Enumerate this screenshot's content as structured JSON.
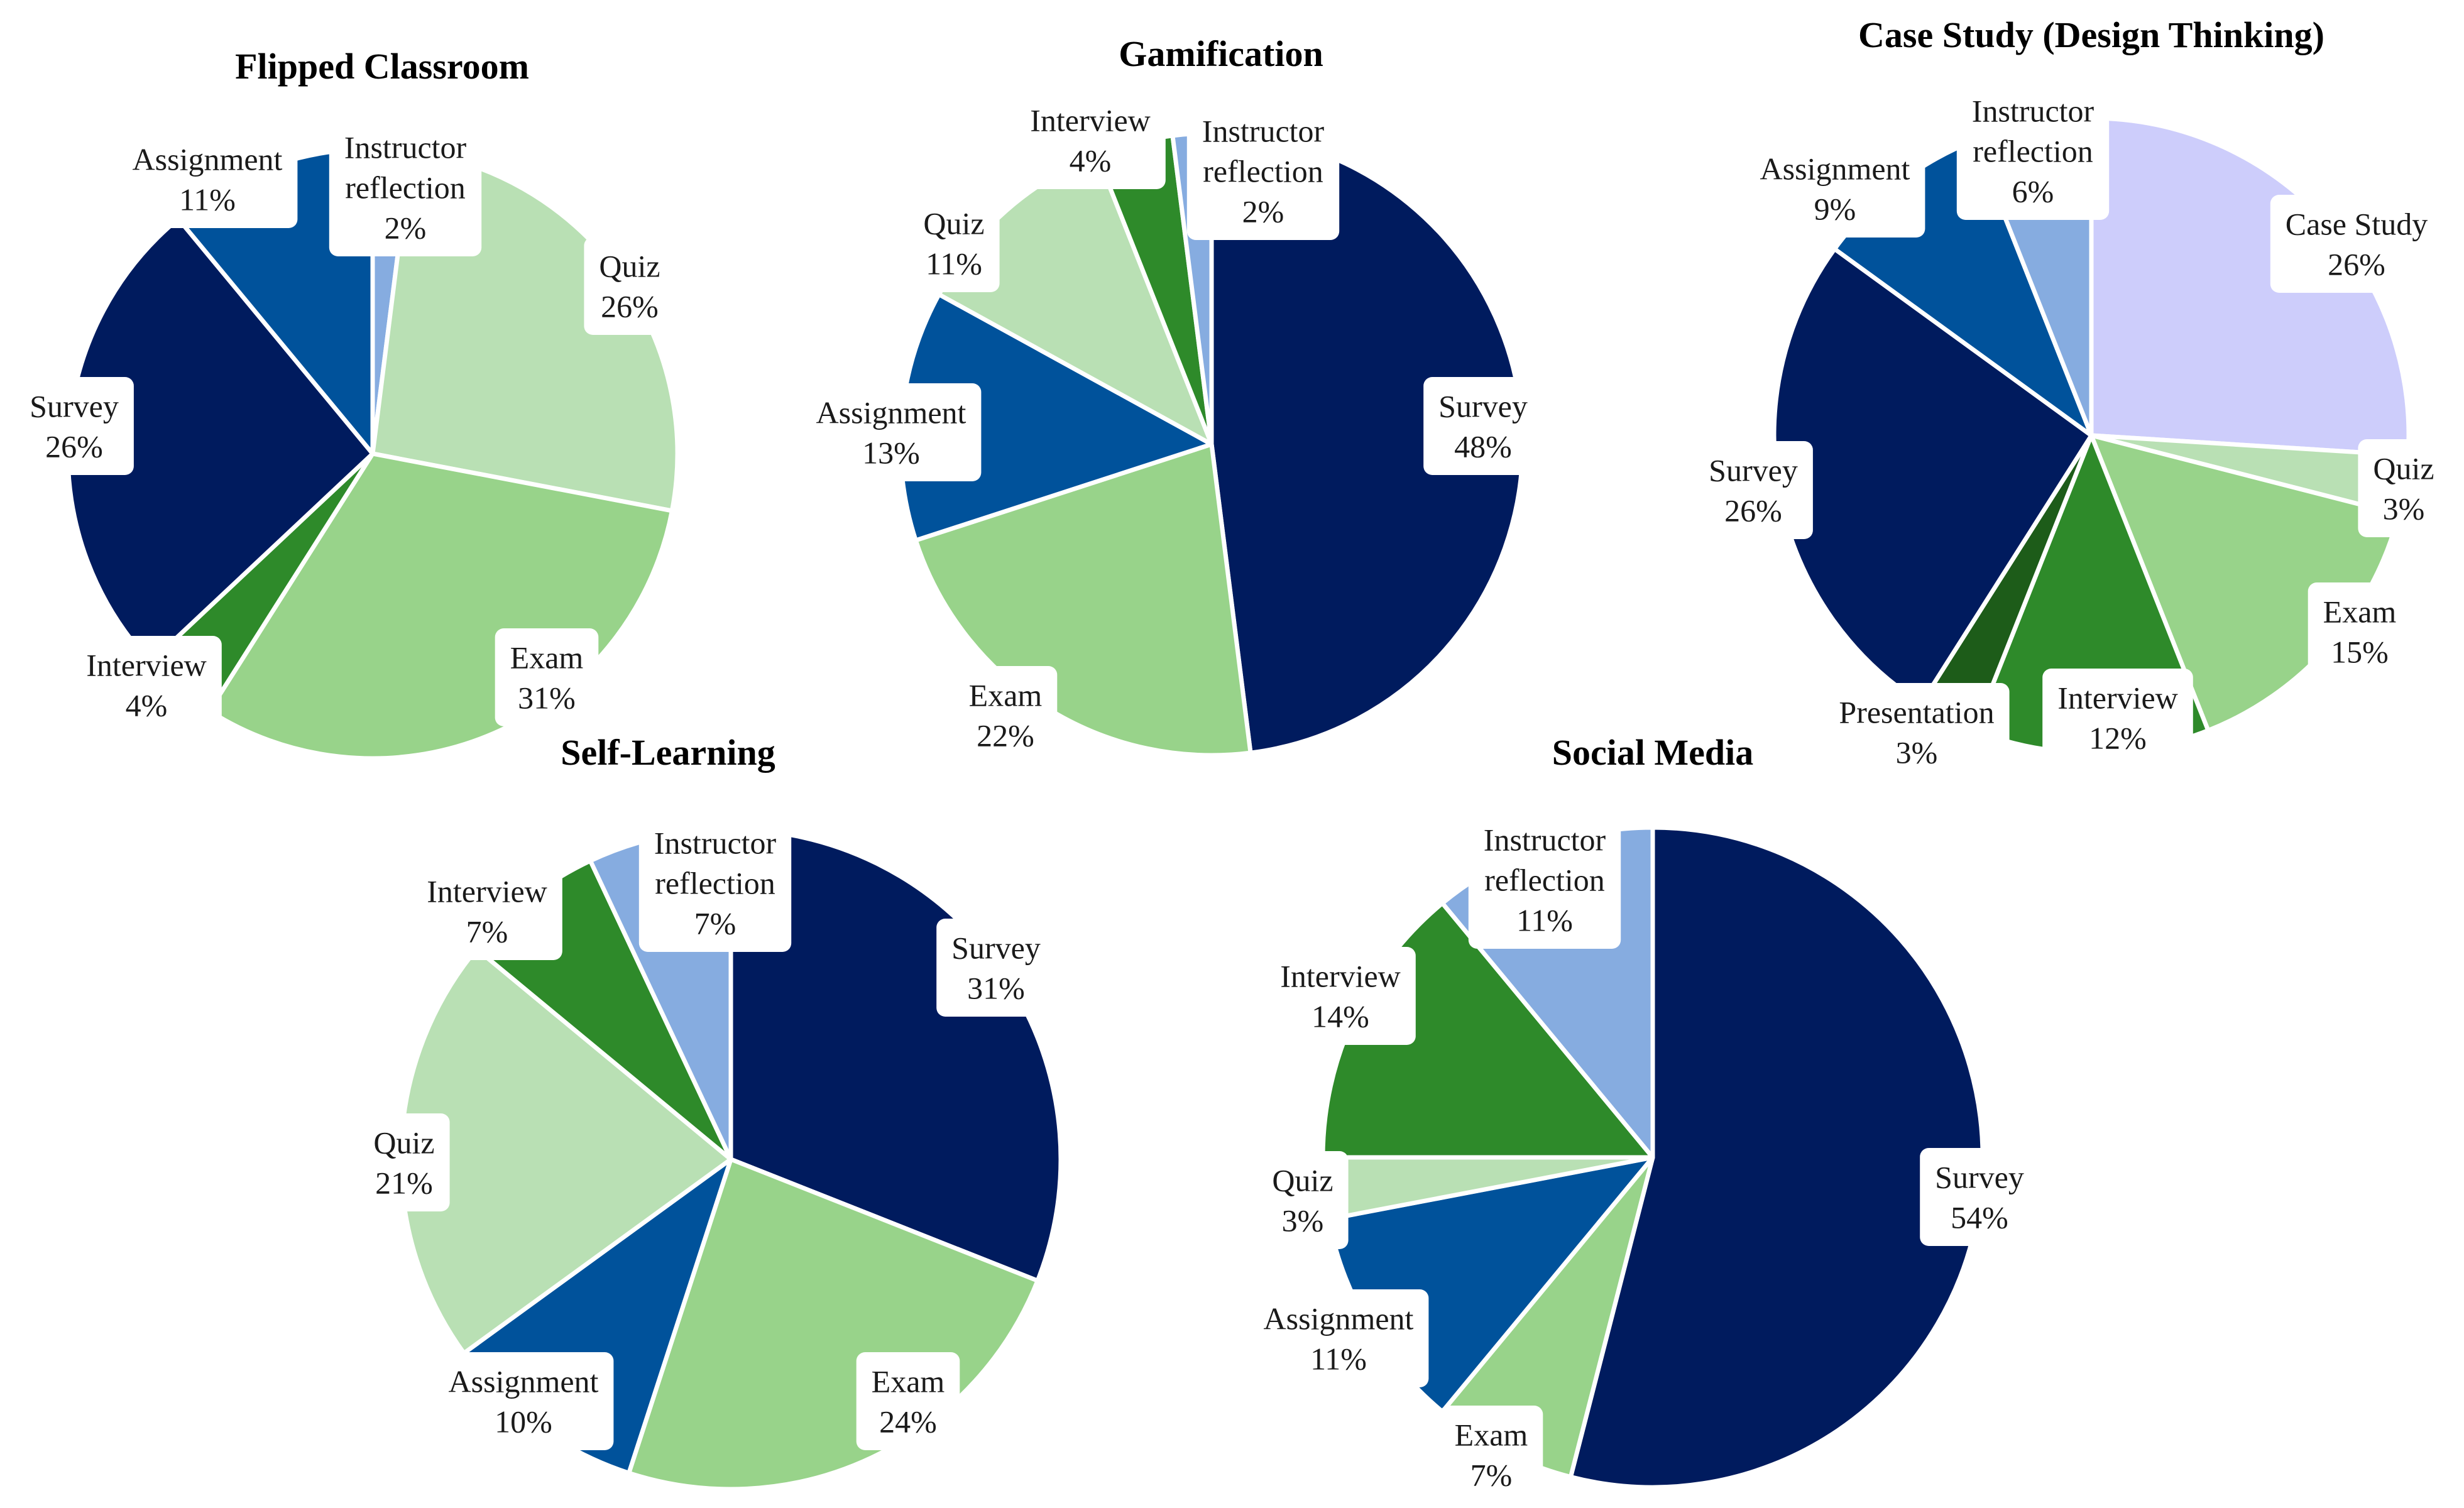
{
  "colors": {
    "survey": "#001b5e",
    "assignment": "#00529b",
    "instructor": "#86ace0",
    "quiz": "#b9e0b4",
    "exam": "#98d38a",
    "interview": "#2e8a2a",
    "presentation": "#1d5c19",
    "case_study": "#cdcdfb"
  },
  "chart_data": [
    {
      "type": "pie",
      "title": "Flipped Classroom",
      "slices": [
        {
          "name": "Instructor reflection",
          "value": 2,
          "color_key": "instructor",
          "lines": [
            "Instructor",
            "reflection",
            "2%"
          ]
        },
        {
          "name": "Quiz",
          "value": 26,
          "color_key": "quiz",
          "lines": [
            "Quiz",
            "26%"
          ]
        },
        {
          "name": "Exam",
          "value": 31,
          "color_key": "exam",
          "lines": [
            "Exam",
            "31%"
          ]
        },
        {
          "name": "Interview",
          "value": 4,
          "color_key": "interview",
          "lines": [
            "Interview",
            "4%"
          ]
        },
        {
          "name": "Survey",
          "value": 26,
          "color_key": "survey",
          "lines": [
            "Survey",
            "26%"
          ]
        },
        {
          "name": "Assignment",
          "value": 11,
          "color_key": "assignment",
          "lines": [
            "Assignment",
            "11%"
          ]
        }
      ]
    },
    {
      "type": "pie",
      "title": "Gamification",
      "slices": [
        {
          "name": "Survey",
          "value": 48,
          "color_key": "survey",
          "lines": [
            "Survey",
            "48%"
          ]
        },
        {
          "name": "Exam",
          "value": 22,
          "color_key": "exam",
          "lines": [
            "Exam",
            "22%"
          ]
        },
        {
          "name": "Assignment",
          "value": 13,
          "color_key": "assignment",
          "lines": [
            "Assignment",
            "13%"
          ]
        },
        {
          "name": "Quiz",
          "value": 11,
          "color_key": "quiz",
          "lines": [
            "Quiz",
            "11%"
          ]
        },
        {
          "name": "Interview",
          "value": 4,
          "color_key": "interview",
          "lines": [
            "Interview",
            "4%"
          ]
        },
        {
          "name": "Instructor reflection",
          "value": 2,
          "color_key": "instructor",
          "lines": [
            "Instructor",
            "reflection",
            "2%"
          ]
        }
      ]
    },
    {
      "type": "pie",
      "title": "Case Study (Design Thinking)",
      "slices": [
        {
          "name": "Case Study",
          "value": 26,
          "color_key": "case_study",
          "lines": [
            "Case Study",
            "26%"
          ]
        },
        {
          "name": "Quiz",
          "value": 3,
          "color_key": "quiz",
          "lines": [
            "Quiz",
            "3%"
          ]
        },
        {
          "name": "Exam",
          "value": 15,
          "color_key": "exam",
          "lines": [
            "Exam",
            "15%"
          ]
        },
        {
          "name": "Interview",
          "value": 12,
          "color_key": "interview",
          "lines": [
            "Interview",
            "12%"
          ]
        },
        {
          "name": "Presentation",
          "value": 3,
          "color_key": "presentation",
          "lines": [
            "Presentation",
            "3%"
          ]
        },
        {
          "name": "Survey",
          "value": 26,
          "color_key": "survey",
          "lines": [
            "Survey",
            "26%"
          ]
        },
        {
          "name": "Assignment",
          "value": 9,
          "color_key": "assignment",
          "lines": [
            "Assignment",
            "9%"
          ]
        },
        {
          "name": "Instructor reflection",
          "value": 6,
          "color_key": "instructor",
          "lines": [
            "Instructor",
            "reflection",
            "6%"
          ]
        }
      ]
    },
    {
      "type": "pie",
      "title": "Self-Learning",
      "slices": [
        {
          "name": "Survey",
          "value": 31,
          "color_key": "survey",
          "lines": [
            "Survey",
            "31%"
          ]
        },
        {
          "name": "Exam",
          "value": 24,
          "color_key": "exam",
          "lines": [
            "Exam",
            "24%"
          ]
        },
        {
          "name": "Assignment",
          "value": 10,
          "color_key": "assignment",
          "lines": [
            "Assignment",
            "10%"
          ]
        },
        {
          "name": "Quiz",
          "value": 21,
          "color_key": "quiz",
          "lines": [
            "Quiz",
            "21%"
          ]
        },
        {
          "name": "Interview",
          "value": 7,
          "color_key": "interview",
          "lines": [
            "Interview",
            "7%"
          ]
        },
        {
          "name": "Instructor reflection",
          "value": 7,
          "color_key": "instructor",
          "lines": [
            "Instructor",
            "reflection",
            "7%"
          ]
        }
      ]
    },
    {
      "type": "pie",
      "title": "Social Media",
      "slices": [
        {
          "name": "Survey",
          "value": 54,
          "color_key": "survey",
          "lines": [
            "Survey",
            "54%"
          ]
        },
        {
          "name": "Exam",
          "value": 7,
          "color_key": "exam",
          "lines": [
            "Exam",
            "7%"
          ]
        },
        {
          "name": "Assignment",
          "value": 11,
          "color_key": "assignment",
          "lines": [
            "Assignment",
            "11%"
          ]
        },
        {
          "name": "Quiz",
          "value": 3,
          "color_key": "quiz",
          "lines": [
            "Quiz",
            "3%"
          ]
        },
        {
          "name": "Interview",
          "value": 14,
          "color_key": "interview",
          "lines": [
            "Interview",
            "14%"
          ]
        },
        {
          "name": "Instructor reflection",
          "value": 11,
          "color_key": "instructor",
          "lines": [
            "Instructor",
            "reflection",
            "11%"
          ]
        }
      ]
    }
  ]
}
